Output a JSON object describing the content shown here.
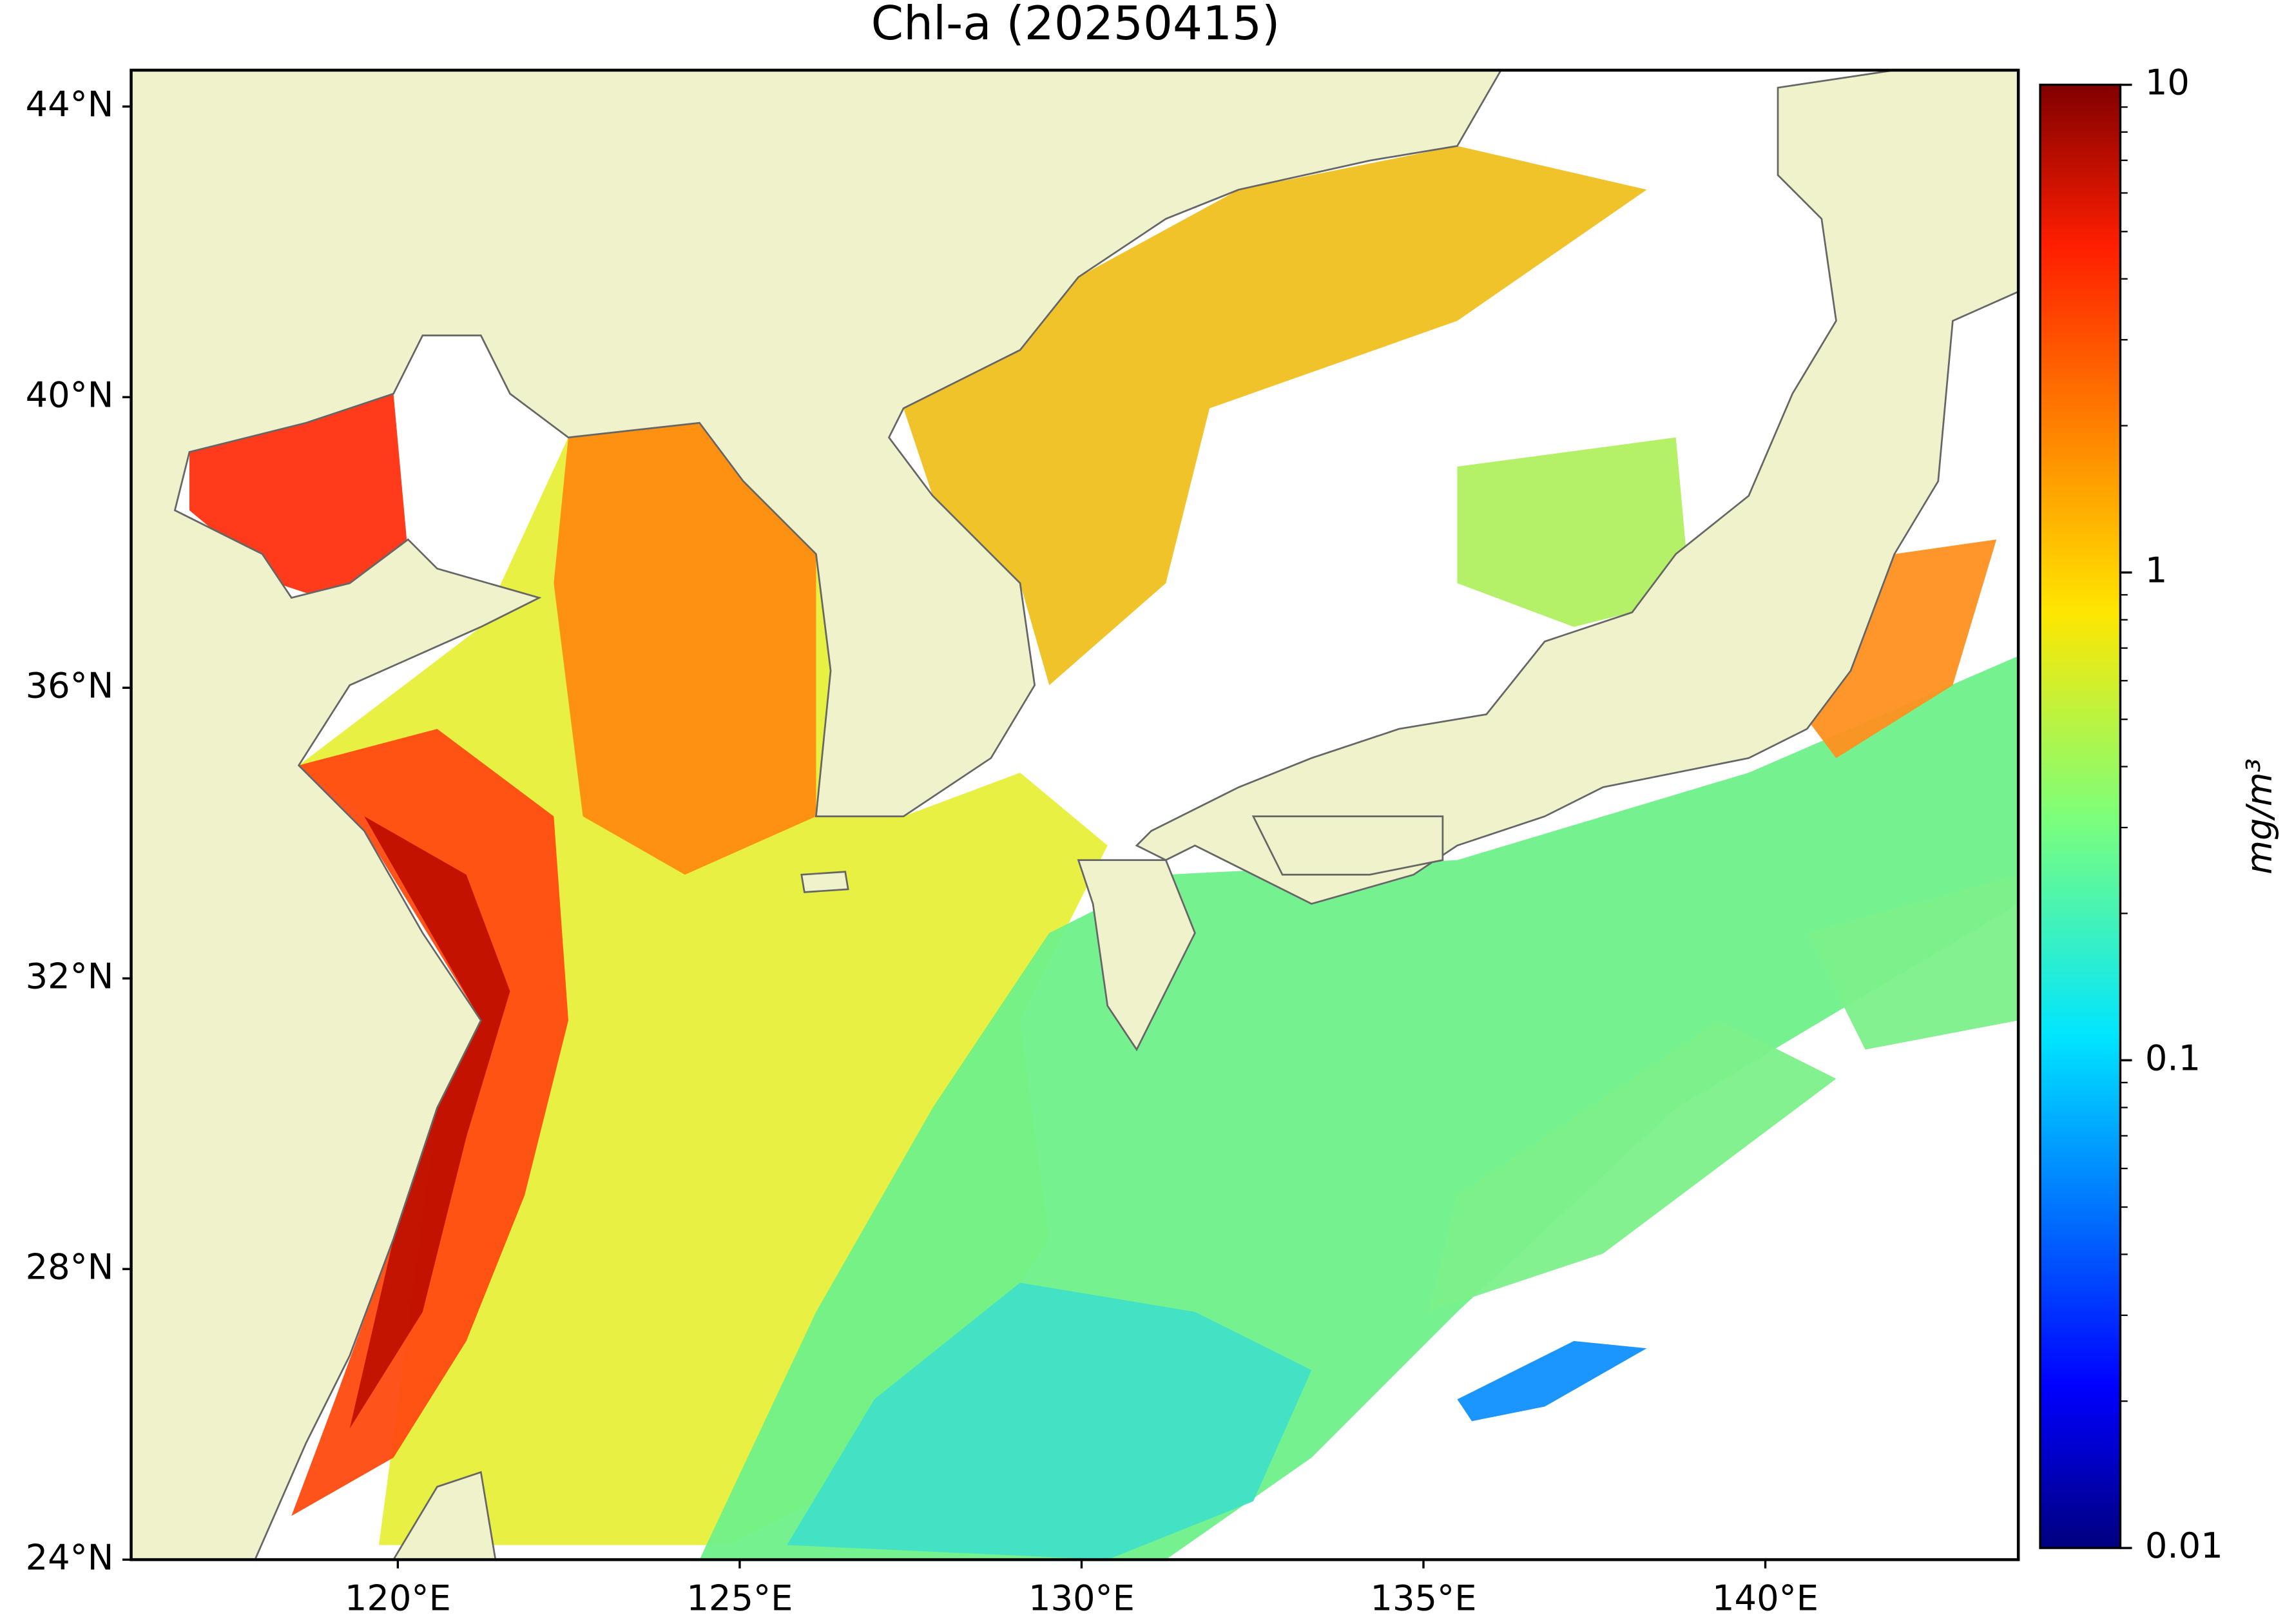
{
  "chart_data": {
    "type": "map",
    "title": "Chl-a (20250415)",
    "xlim": [
      116.1,
      143.7
    ],
    "ylim": [
      24,
      44.5
    ],
    "xticks": [
      {
        "value": 120,
        "label": "120°E"
      },
      {
        "value": 125,
        "label": "125°E"
      },
      {
        "value": 130,
        "label": "130°E"
      },
      {
        "value": 135,
        "label": "135°E"
      },
      {
        "value": 140,
        "label": "140°E"
      }
    ],
    "yticks": [
      {
        "value": 24,
        "label": "24°N"
      },
      {
        "value": 28,
        "label": "28°N"
      },
      {
        "value": 32,
        "label": "32°N"
      },
      {
        "value": 36,
        "label": "36°N"
      },
      {
        "value": 40,
        "label": "40°N"
      },
      {
        "value": 44,
        "label": "44°N"
      }
    ],
    "colorbar": {
      "label": "mg/m³",
      "scale": "log",
      "lim": [
        0.01,
        10
      ],
      "ticks": [
        0.01,
        0.1,
        1,
        10
      ]
    }
  }
}
